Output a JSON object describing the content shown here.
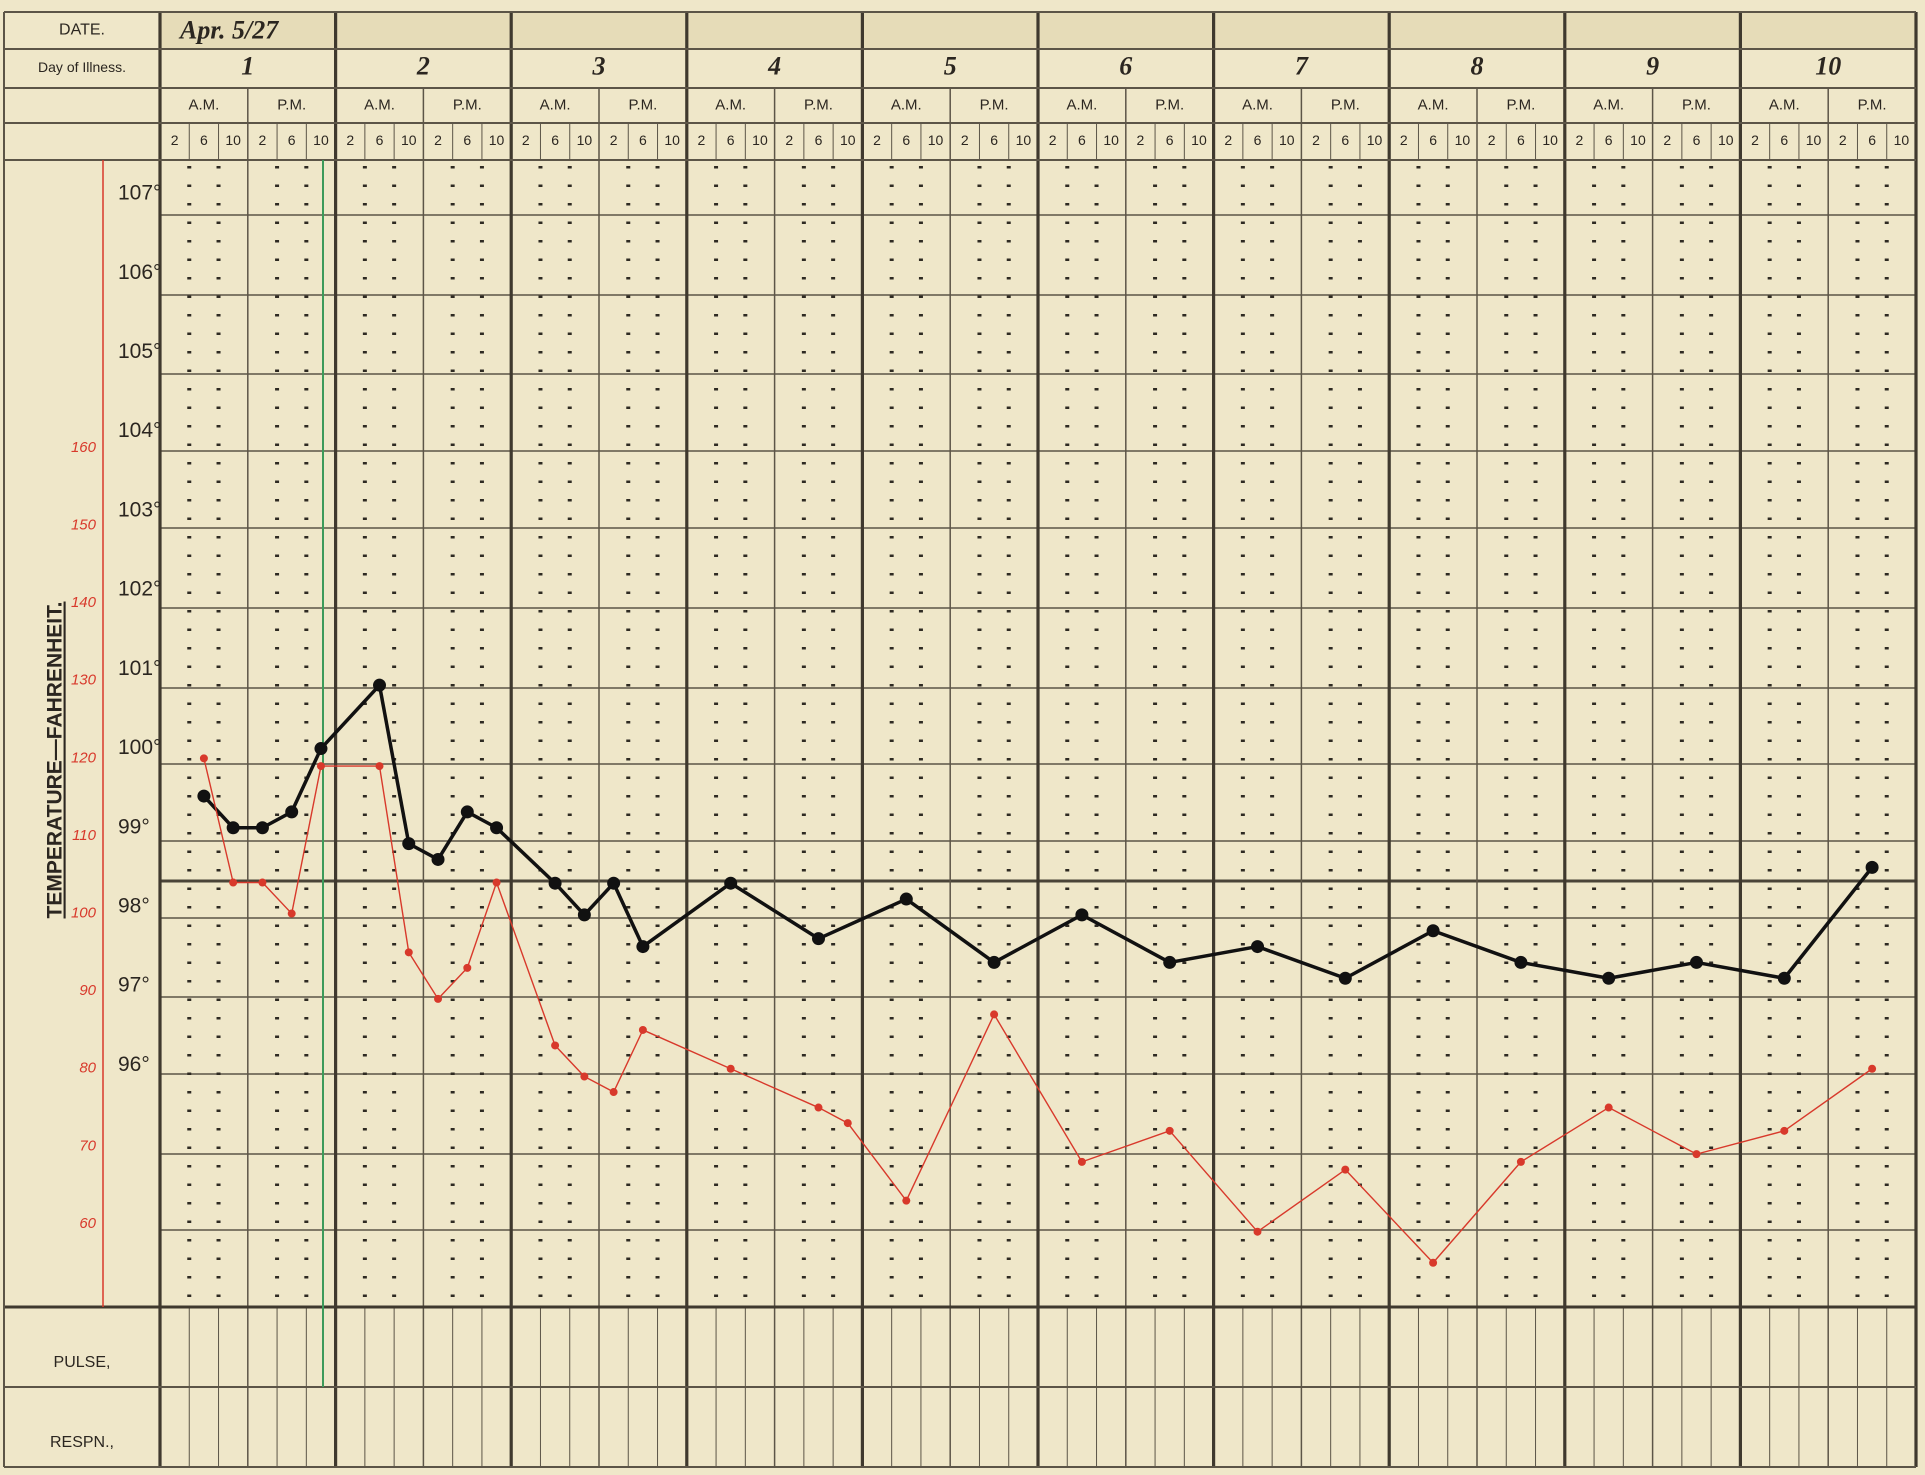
{
  "chart_data": {
    "type": "line",
    "date_label": "DATE.",
    "day_label": "Day of Illness.",
    "date": "Apr. 5/27",
    "days": [
      "1",
      "2",
      "3",
      "4",
      "5",
      "6",
      "7",
      "8",
      "9",
      "10"
    ],
    "halves": [
      "A.M.",
      "P.M.",
      "A.M.",
      "P.M.",
      "A.M.",
      "P.M.",
      "A.M.",
      "P.M.",
      "A.M.",
      "P.M.",
      "A.M.",
      "P.M.",
      "A.M.",
      "P.M.",
      "A.M.",
      "P.M.",
      "A.M.",
      "P.M.",
      "A.M.",
      "P.M."
    ],
    "categories": [
      "2",
      "6",
      "10",
      "2",
      "6",
      "10",
      "2",
      "6",
      "10",
      "2",
      "6",
      "10",
      "2",
      "6",
      "10",
      "2",
      "6",
      "10",
      "2",
      "6",
      "10",
      "2",
      "6",
      "10",
      "2",
      "6",
      "10",
      "2",
      "6",
      "10",
      "2",
      "6",
      "10",
      "2",
      "6",
      "10",
      "2",
      "6",
      "10",
      "2",
      "6",
      "10",
      "2",
      "6",
      "10",
      "2",
      "6",
      "10",
      "2",
      "6",
      "10",
      "2",
      "6",
      "10",
      "2",
      "6",
      "10",
      "2",
      "6",
      "10"
    ],
    "ylabel": "TEMPERATURE—FAHRENHEIT.",
    "bottom_rows": [
      "PULSE,",
      "RESPN.,"
    ],
    "ylim": [
      92.95,
      107.43
    ],
    "yticks": [
      {
        "value": 96,
        "label": "96°"
      },
      {
        "value": 97,
        "label": "97°"
      },
      {
        "value": 98,
        "label": "98°"
      },
      {
        "value": 99,
        "label": "99°"
      },
      {
        "value": 100,
        "label": "100°"
      },
      {
        "value": 101,
        "label": "101°"
      },
      {
        "value": 102,
        "label": "102°"
      },
      {
        "value": 103,
        "label": "103°"
      },
      {
        "value": 104,
        "label": "104°"
      },
      {
        "value": 105,
        "label": "105°"
      },
      {
        "value": 106,
        "label": "106°"
      },
      {
        "value": 107,
        "label": "107°"
      }
    ],
    "y2lim": [
      49.3,
      197.1
    ],
    "y2ticks": [
      60,
      70,
      80,
      90,
      100,
      110,
      120,
      130,
      140,
      150,
      160
    ],
    "y2color": "#d8392b",
    "series": [
      {
        "color": "#111111",
        "values": [
          null,
          99.4,
          99.0,
          99.0,
          99.2,
          100.0,
          null,
          100.8,
          98.8,
          98.6,
          99.2,
          99.0,
          null,
          98.3,
          97.9,
          98.3,
          97.5,
          null,
          null,
          98.3,
          null,
          null,
          97.6,
          null,
          null,
          98.1,
          null,
          null,
          97.3,
          null,
          null,
          97.9,
          null,
          null,
          97.3,
          null,
          null,
          97.5,
          null,
          null,
          97.1,
          null,
          null,
          97.7,
          null,
          null,
          97.3,
          null,
          null,
          97.1,
          null,
          null,
          97.3,
          null,
          null,
          97.1,
          null,
          null,
          98.5,
          null
        ]
      },
      {
        "color": "#d8392b",
        "axis": "y2",
        "values": [
          null,
          120,
          104,
          104,
          100,
          119,
          null,
          119,
          95,
          89,
          93,
          104,
          null,
          83,
          79,
          77,
          85,
          null,
          null,
          80,
          null,
          null,
          75,
          73,
          null,
          63,
          null,
          null,
          87,
          null,
          null,
          68,
          null,
          null,
          72,
          null,
          null,
          59,
          null,
          null,
          67,
          null,
          null,
          55,
          null,
          null,
          68,
          null,
          null,
          75,
          null,
          null,
          69,
          null,
          null,
          72,
          null,
          null,
          80,
          null
        ]
      }
    ]
  }
}
